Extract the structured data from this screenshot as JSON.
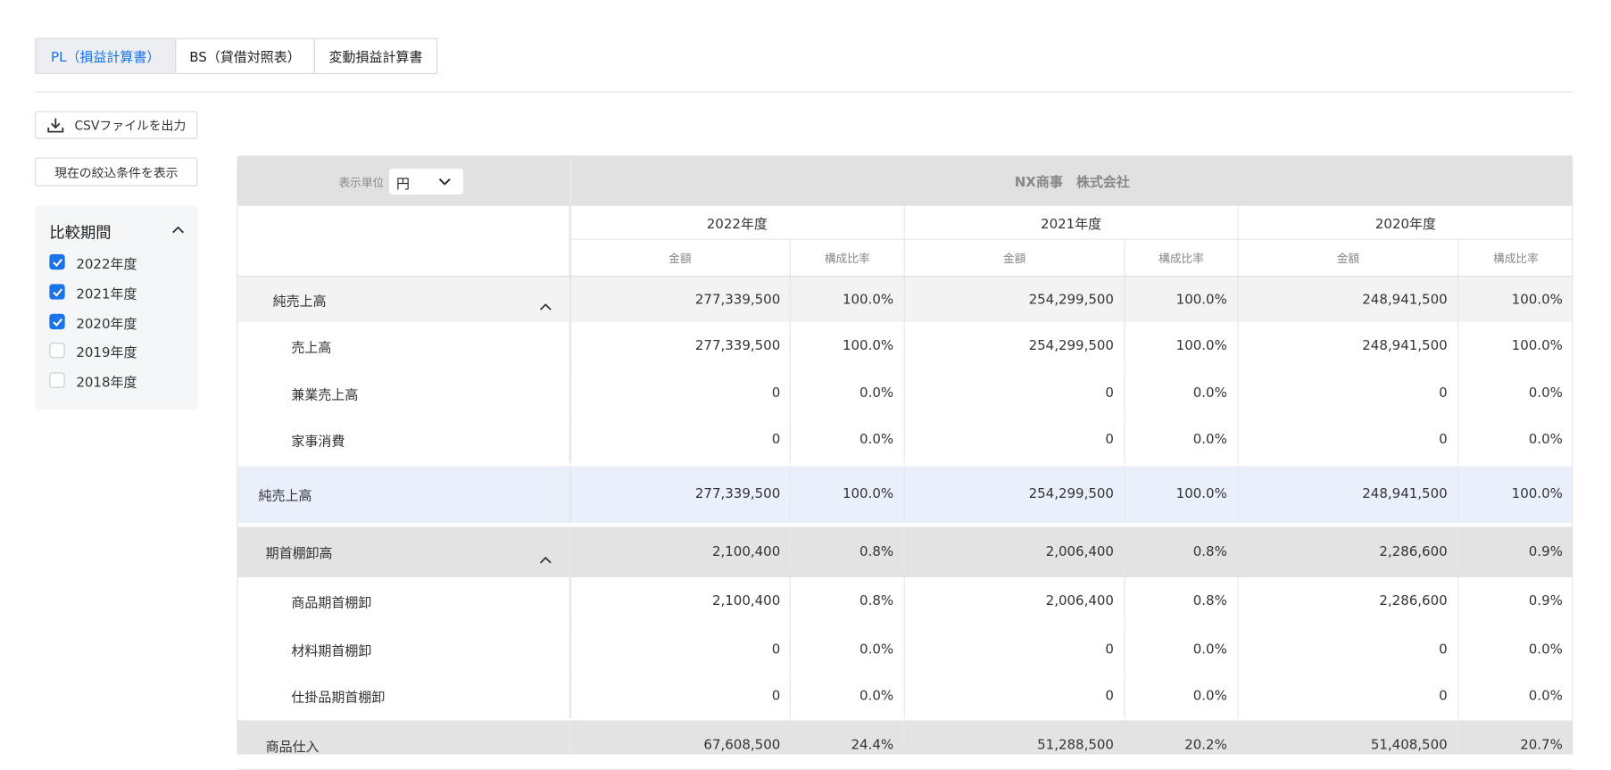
{
  "tabs": [
    "PL（損益計算書）",
    "BS（貸借対照表）",
    "変動損益計算書"
  ],
  "csv_button": "CSVファイルを出力",
  "filter_button": "現在の絞込条件を表示",
  "period_panel": {
    "title": "比較期間",
    "options": [
      {
        "label": "2022年度",
        "checked": true
      },
      {
        "label": "2021年度",
        "checked": true
      },
      {
        "label": "2020年度",
        "checked": true
      },
      {
        "label": "2019年度",
        "checked": false
      },
      {
        "label": "2018年度",
        "checked": false
      }
    ]
  },
  "table": {
    "unit_label": "表示単位",
    "unit_value": "円",
    "company": "NX商事　株式会社",
    "years": [
      "2022年度",
      "2021年度",
      "2020年度"
    ],
    "sub_headers": [
      "金額",
      "構成比率"
    ],
    "rows": [
      {
        "label": "純売上高",
        "kind": "group",
        "cells": [
          "277,339,500",
          "100.0%",
          "254,299,500",
          "100.0%",
          "248,941,500",
          "100.0%"
        ]
      },
      {
        "label": "売上高",
        "kind": "item",
        "cells": [
          "277,339,500",
          "100.0%",
          "254,299,500",
          "100.0%",
          "248,941,500",
          "100.0%"
        ]
      },
      {
        "label": "兼業売上高",
        "kind": "item",
        "cells": [
          "0",
          "0.0%",
          "0",
          "0.0%",
          "0",
          "0.0%"
        ]
      },
      {
        "label": "家事消費",
        "kind": "item",
        "cells": [
          "0",
          "0.0%",
          "0",
          "0.0%",
          "0",
          "0.0%"
        ]
      },
      {
        "label": "純売上高",
        "kind": "total",
        "cells": [
          "277,339,500",
          "100.0%",
          "254,299,500",
          "100.0%",
          "248,941,500",
          "100.0%"
        ]
      },
      {
        "label": "期首棚卸高",
        "kind": "group2",
        "cells": [
          "2,100,400",
          "0.8%",
          "2,006,400",
          "0.8%",
          "2,286,600",
          "0.9%"
        ]
      },
      {
        "label": "商品期首棚卸",
        "kind": "item",
        "cells": [
          "2,100,400",
          "0.8%",
          "2,006,400",
          "0.8%",
          "2,286,600",
          "0.9%"
        ]
      },
      {
        "label": "材料期首棚卸",
        "kind": "item",
        "cells": [
          "0",
          "0.0%",
          "0",
          "0.0%",
          "0",
          "0.0%"
        ]
      },
      {
        "label": "仕掛品期首棚卸",
        "kind": "item",
        "cells": [
          "0",
          "0.0%",
          "0",
          "0.0%",
          "0",
          "0.0%"
        ]
      },
      {
        "label": "商品仕入",
        "kind": "head",
        "cells": [
          "67,608,500",
          "24.4%",
          "51,288,500",
          "20.2%",
          "51,408,500",
          "20.7%"
        ]
      }
    ]
  }
}
